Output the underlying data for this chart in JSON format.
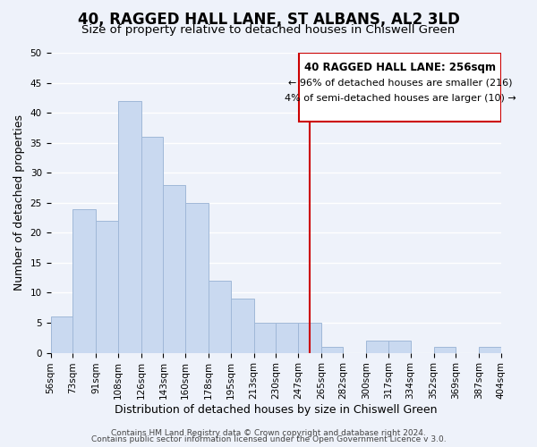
{
  "title": "40, RAGGED HALL LANE, ST ALBANS, AL2 3LD",
  "subtitle": "Size of property relative to detached houses in Chiswell Green",
  "xlabel": "Distribution of detached houses by size in Chiswell Green",
  "ylabel": "Number of detached properties",
  "bar_edges": [
    56,
    73,
    91,
    108,
    126,
    143,
    160,
    178,
    195,
    213,
    230,
    247,
    265,
    282,
    300,
    317,
    334,
    352,
    369,
    387,
    404
  ],
  "bar_heights": [
    6,
    24,
    22,
    42,
    36,
    28,
    25,
    12,
    9,
    5,
    5,
    5,
    1,
    0,
    2,
    2,
    0,
    1,
    0,
    1
  ],
  "bar_color": "#c9d9f0",
  "bar_edge_color": "#a0b8d8",
  "vline_x": 256,
  "vline_color": "#cc0000",
  "ylim": [
    0,
    50
  ],
  "yticks": [
    0,
    5,
    10,
    15,
    20,
    25,
    30,
    35,
    40,
    45,
    50
  ],
  "tick_labels": [
    "56sqm",
    "73sqm",
    "91sqm",
    "108sqm",
    "126sqm",
    "143sqm",
    "160sqm",
    "178sqm",
    "195sqm",
    "213sqm",
    "230sqm",
    "247sqm",
    "265sqm",
    "282sqm",
    "300sqm",
    "317sqm",
    "334sqm",
    "352sqm",
    "369sqm",
    "387sqm",
    "404sqm"
  ],
  "annotation_title": "40 RAGGED HALL LANE: 256sqm",
  "annotation_line1": "← 96% of detached houses are smaller (216)",
  "annotation_line2": "4% of semi-detached houses are larger (10) →",
  "annotation_box_color": "#ffffff",
  "annotation_box_edge": "#cc0000",
  "footer1": "Contains HM Land Registry data © Crown copyright and database right 2024.",
  "footer2": "Contains public sector information licensed under the Open Government Licence v 3.0.",
  "background_color": "#eef2fa",
  "grid_color": "#ffffff",
  "title_fontsize": 12,
  "subtitle_fontsize": 9.5,
  "label_fontsize": 9,
  "tick_fontsize": 7.5,
  "footer_fontsize": 6.5
}
